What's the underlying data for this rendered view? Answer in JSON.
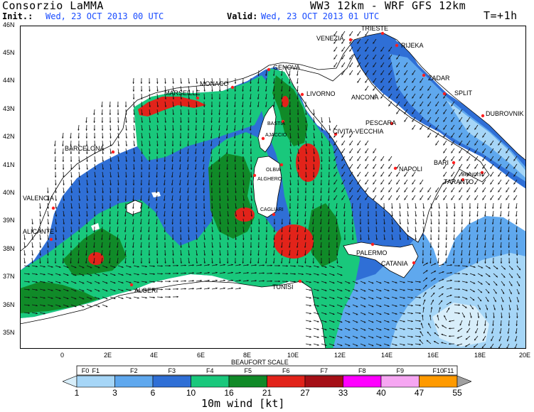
{
  "header": {
    "provider": "Consorzio LaMMA",
    "model": "WW3 12km - WRF GFS 12km",
    "init_label": "Init.:",
    "init_value": "Wed, 23 OCT 2013  00 UTC",
    "valid_label": "Valid:",
    "valid_value": "Wed, 23 OCT 2013  01 UTC",
    "lead": "T=+1h"
  },
  "map": {
    "lat_labels": [
      "46N",
      "45N",
      "44N",
      "43N",
      "42N",
      "41N",
      "40N",
      "39N",
      "38N",
      "37N",
      "36N",
      "35N"
    ],
    "lon_labels": [
      "0",
      "2E",
      "4E",
      "6E",
      "8E",
      "10E",
      "12E",
      "14E",
      "16E",
      "18E",
      "20E"
    ],
    "cities": [
      {
        "name": "TRIESTE"
      },
      {
        "name": "VENEZIA"
      },
      {
        "name": "RIJEKA"
      },
      {
        "name": "GENOVA"
      },
      {
        "name": "MONACO"
      },
      {
        "name": "MARSEILLE"
      },
      {
        "name": "LIVORNO"
      },
      {
        "name": "ANCONA"
      },
      {
        "name": "ZADAR"
      },
      {
        "name": "SPLIT"
      },
      {
        "name": "DUBROVNIK"
      },
      {
        "name": "BASTIA"
      },
      {
        "name": "AJACCIO"
      },
      {
        "name": "PESCARA"
      },
      {
        "name": "CIVITA-VECCHIA"
      },
      {
        "name": "BARCELONA"
      },
      {
        "name": "OLBIA"
      },
      {
        "name": "ALGHERO"
      },
      {
        "name": "NAPOLI"
      },
      {
        "name": "BARI"
      },
      {
        "name": "BRINDISI"
      },
      {
        "name": "TARANTO"
      },
      {
        "name": "VALENCIA"
      },
      {
        "name": "CAGLIARI"
      },
      {
        "name": "ALICANTE"
      },
      {
        "name": "PALERMO"
      },
      {
        "name": "CATANIA"
      },
      {
        "name": "TUNISI"
      },
      {
        "name": "ALGERI"
      }
    ],
    "colors": {
      "land": "#ffffff",
      "f0": "#d8eefa",
      "f1": "#a6d6f7",
      "f2": "#5fa8ee",
      "f3": "#2f6fd6",
      "f4": "#19c87c",
      "f5": "#108a28",
      "f6": "#e2231a",
      "f7": "#a50f16",
      "f8": "#ff00ff",
      "f9": "#f6a6f2",
      "f10": "#ff9a00",
      "f11": "#a0a0a0",
      "arrow": "#111111",
      "city_dot": "#ff2020",
      "header_blue": "#1a4cff"
    }
  },
  "legend": {
    "title": "BEAUFORT SCALE",
    "classes": [
      "F0",
      "F1",
      "F2",
      "F3",
      "F4",
      "F5",
      "F6",
      "F7",
      "F8",
      "F9",
      "F10",
      "F11"
    ],
    "values": [
      "1",
      "3",
      "6",
      "10",
      "16",
      "21",
      "27",
      "33",
      "40",
      "47",
      "55"
    ],
    "caption": "10m wind [kt]"
  }
}
